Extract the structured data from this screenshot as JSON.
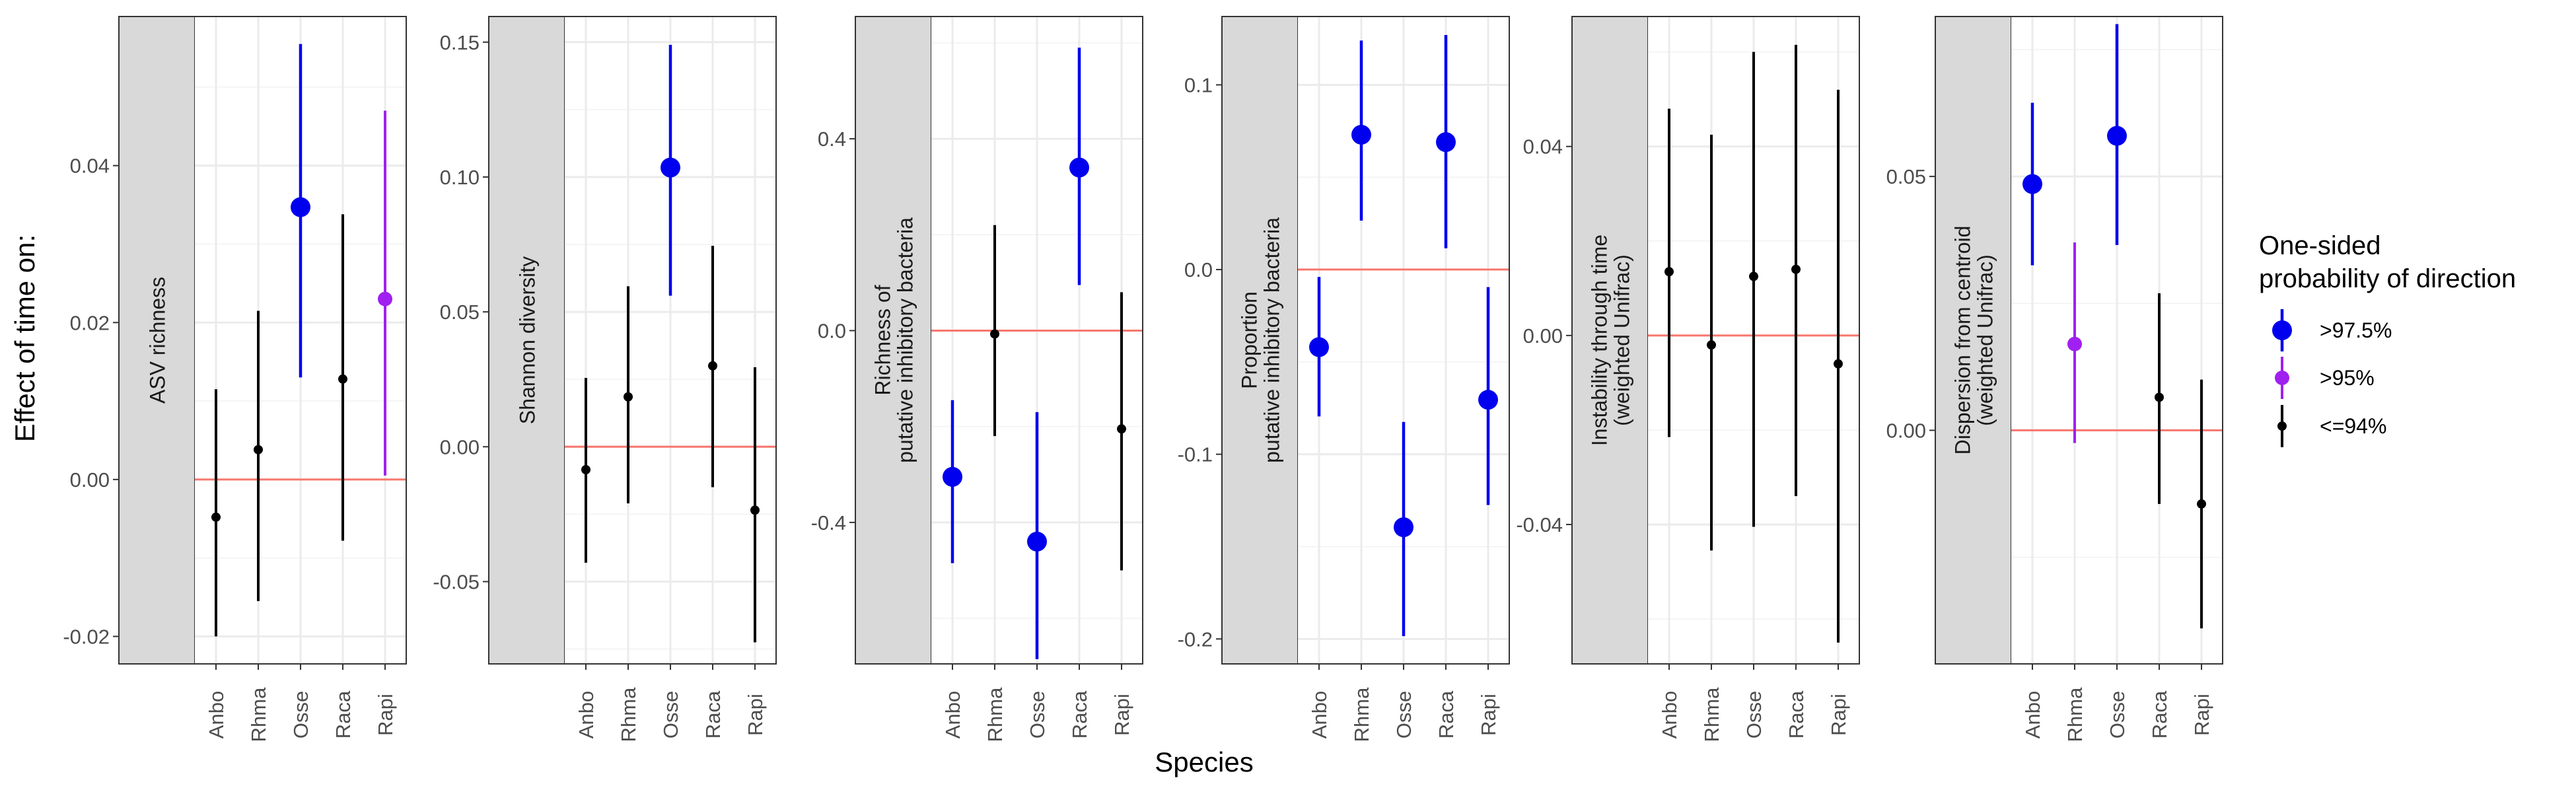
{
  "figure": {
    "ylabel": "Effect of time on:",
    "xlabel": "Species",
    "legend": {
      "title_line1": "One-sided",
      "title_line2": "probability of direction",
      "placement": "right",
      "items": [
        {
          "label": ">97.5%",
          "color": "#0000ee",
          "size": "large"
        },
        {
          "label": ">95%",
          "color": "#a020f0",
          "size": "medium"
        },
        {
          "label": "<=94%",
          "color": "#000000",
          "size": "small"
        }
      ]
    },
    "colors": {
      "reference_line": "#f8766d",
      "strip_bg": "#d9d9d9",
      "grid": "#ebebeb"
    }
  },
  "chart_data": [
    {
      "type": "scatter",
      "strip_lines": [
        "ASV richness"
      ],
      "categories": [
        "Anbo",
        "Rhma",
        "Osse",
        "Raca",
        "Rapi"
      ],
      "ylim": [
        -0.0235,
        0.059
      ],
      "yticks": [
        -0.02,
        0.0,
        0.02,
        0.04
      ],
      "ytick_labels": [
        "-0.02",
        "0.00",
        "0.02",
        "0.04"
      ],
      "reference_y": 0.0,
      "points": [
        {
          "species": "Anbo",
          "estimate": -0.0048,
          "lower": -0.02,
          "upper": 0.0115,
          "group": "<=94%"
        },
        {
          "species": "Rhma",
          "estimate": 0.0038,
          "lower": -0.0155,
          "upper": 0.0215,
          "group": "<=94%"
        },
        {
          "species": "Osse",
          "estimate": 0.0347,
          "lower": 0.013,
          "upper": 0.0555,
          "group": ">97.5%"
        },
        {
          "species": "Raca",
          "estimate": 0.0128,
          "lower": -0.0078,
          "upper": 0.0338,
          "group": "<=94%"
        },
        {
          "species": "Rapi",
          "estimate": 0.023,
          "lower": 0.0005,
          "upper": 0.047,
          "group": ">95%"
        }
      ]
    },
    {
      "type": "scatter",
      "strip_lines": [
        "Shannon diversity"
      ],
      "categories": [
        "Anbo",
        "Rhma",
        "Osse",
        "Raca",
        "Rapi"
      ],
      "ylim": [
        -0.0805,
        0.1595
      ],
      "yticks": [
        -0.05,
        0.0,
        0.05,
        0.1,
        0.15
      ],
      "ytick_labels": [
        "-0.05",
        "0.00",
        "0.05",
        "0.10",
        "0.15"
      ],
      "reference_y": 0.0,
      "points": [
        {
          "species": "Anbo",
          "estimate": -0.0085,
          "lower": -0.043,
          "upper": 0.0255,
          "group": "<=94%"
        },
        {
          "species": "Rhma",
          "estimate": 0.0185,
          "lower": -0.021,
          "upper": 0.0595,
          "group": "<=94%"
        },
        {
          "species": "Osse",
          "estimate": 0.1035,
          "lower": 0.056,
          "upper": 0.149,
          "group": ">97.5%"
        },
        {
          "species": "Raca",
          "estimate": 0.03,
          "lower": -0.015,
          "upper": 0.0745,
          "group": "<=94%"
        },
        {
          "species": "Rapi",
          "estimate": -0.0235,
          "lower": -0.0725,
          "upper": 0.0295,
          "group": "<=94%"
        }
      ]
    },
    {
      "type": "scatter",
      "strip_lines": [
        "Richness of",
        "putative inhibitory bacteria"
      ],
      "categories": [
        "Anbo",
        "Rhma",
        "Osse",
        "Raca",
        "Rapi"
      ],
      "ylim": [
        -0.695,
        0.655
      ],
      "yticks": [
        -0.4,
        0.0,
        0.4
      ],
      "ytick_labels": [
        "-0.4",
        "0.0",
        "0.4"
      ],
      "reference_y": 0.0,
      "points": [
        {
          "species": "Anbo",
          "estimate": -0.305,
          "lower": -0.485,
          "upper": -0.145,
          "group": ">97.5%"
        },
        {
          "species": "Rhma",
          "estimate": -0.007,
          "lower": -0.22,
          "upper": 0.22,
          "group": "<=94%"
        },
        {
          "species": "Osse",
          "estimate": -0.44,
          "lower": -0.685,
          "upper": -0.17,
          "group": ">97.5%"
        },
        {
          "species": "Raca",
          "estimate": 0.34,
          "lower": 0.095,
          "upper": 0.59,
          "group": ">97.5%"
        },
        {
          "species": "Rapi",
          "estimate": -0.205,
          "lower": -0.5,
          "upper": 0.08,
          "group": "<=94%"
        }
      ]
    },
    {
      "type": "scatter",
      "strip_lines": [
        "Proportion",
        "putative inhibitory bacteria"
      ],
      "categories": [
        "Anbo",
        "Rhma",
        "Osse",
        "Raca",
        "Rapi"
      ],
      "ylim": [
        -0.2135,
        0.137
      ],
      "yticks": [
        -0.2,
        -0.1,
        0.0,
        0.1
      ],
      "ytick_labels": [
        "-0.2",
        "-0.1",
        "0.0",
        "0.1"
      ],
      "reference_y": 0.0,
      "points": [
        {
          "species": "Anbo",
          "estimate": -0.042,
          "lower": -0.0795,
          "upper": -0.004,
          "group": ">97.5%"
        },
        {
          "species": "Rhma",
          "estimate": 0.073,
          "lower": 0.0265,
          "upper": 0.124,
          "group": ">97.5%"
        },
        {
          "species": "Osse",
          "estimate": -0.1395,
          "lower": -0.1985,
          "upper": -0.0825,
          "group": ">97.5%"
        },
        {
          "species": "Raca",
          "estimate": 0.069,
          "lower": 0.0115,
          "upper": 0.127,
          "group": ">97.5%"
        },
        {
          "species": "Rapi",
          "estimate": -0.0705,
          "lower": -0.1275,
          "upper": -0.0095,
          "group": ">97.5%"
        }
      ]
    },
    {
      "type": "scatter",
      "strip_lines": [
        "Instability through time",
        "(weighted Unifrac)"
      ],
      "categories": [
        "Anbo",
        "Rhma",
        "Osse",
        "Raca",
        "Rapi"
      ],
      "ylim": [
        -0.0695,
        0.0675
      ],
      "yticks": [
        -0.04,
        0.0,
        0.04
      ],
      "ytick_labels": [
        "-0.04",
        "0.00",
        "0.04"
      ],
      "reference_y": 0.0,
      "points": [
        {
          "species": "Anbo",
          "estimate": 0.0135,
          "lower": -0.0215,
          "upper": 0.048,
          "group": "<=94%"
        },
        {
          "species": "Rhma",
          "estimate": -0.002,
          "lower": -0.0455,
          "upper": 0.0425,
          "group": "<=94%"
        },
        {
          "species": "Osse",
          "estimate": 0.0125,
          "lower": -0.0405,
          "upper": 0.06,
          "group": "<=94%"
        },
        {
          "species": "Raca",
          "estimate": 0.014,
          "lower": -0.034,
          "upper": 0.0615,
          "group": "<=94%"
        },
        {
          "species": "Rapi",
          "estimate": -0.006,
          "lower": -0.065,
          "upper": 0.052,
          "group": "<=94%"
        }
      ]
    },
    {
      "type": "scatter",
      "strip_lines": [
        "Dispersion from centroid",
        "(weighted Unifrac)"
      ],
      "categories": [
        "Anbo",
        "Rhma",
        "Osse",
        "Raca",
        "Rapi"
      ],
      "ylim": [
        -0.046,
        0.0815
      ],
      "yticks": [
        0.0,
        0.05
      ],
      "ytick_labels": [
        "0.00",
        "0.05"
      ],
      "reference_y": 0.0,
      "points": [
        {
          "species": "Anbo",
          "estimate": 0.0485,
          "lower": 0.0325,
          "upper": 0.0645,
          "group": ">97.5%"
        },
        {
          "species": "Rhma",
          "estimate": 0.017,
          "lower": -0.0025,
          "upper": 0.037,
          "group": ">95%"
        },
        {
          "species": "Osse",
          "estimate": 0.058,
          "lower": 0.0365,
          "upper": 0.08,
          "group": ">97.5%"
        },
        {
          "species": "Raca",
          "estimate": 0.0065,
          "lower": -0.0145,
          "upper": 0.027,
          "group": "<=94%"
        },
        {
          "species": "Rapi",
          "estimate": -0.0145,
          "lower": -0.039,
          "upper": 0.01,
          "group": "<=94%"
        }
      ]
    }
  ]
}
